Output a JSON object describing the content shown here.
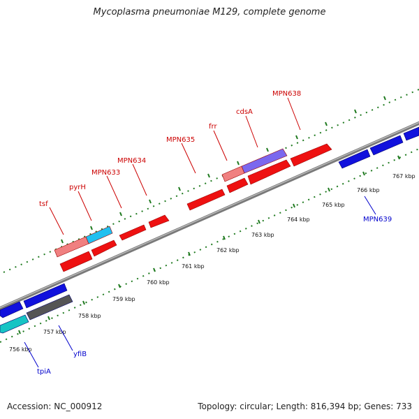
{
  "title": "Mycoplasma pneumoniae M129, complete genome",
  "footer": {
    "accession": "Accession: NC_000912",
    "topology": "Topology: circular; Length: 816,394 bp; Genes: 733"
  },
  "colors": {
    "forward_label": "#cc0000",
    "reverse_label": "#0000cc",
    "forward_gene": "#ee1111",
    "reverse_gene": "#1111dd",
    "backbone": "#8a8a8a",
    "tick": "#1f7a1f"
  },
  "scale_ticks": [
    "756 kbp",
    "757 kbp",
    "758 kbp",
    "759 kbp",
    "760 kbp",
    "761 kbp",
    "762 kbp",
    "763 kbp",
    "764 kbp",
    "765 kbp",
    "766 kbp",
    "767 kbp"
  ],
  "forward_labels": [
    "tsf",
    "pyrH",
    "MPN633",
    "MPN634",
    "MPN635",
    "frr",
    "cdsA",
    "MPN638"
  ],
  "reverse_labels": [
    "tpiA",
    "yfiB",
    "MPN639"
  ]
}
